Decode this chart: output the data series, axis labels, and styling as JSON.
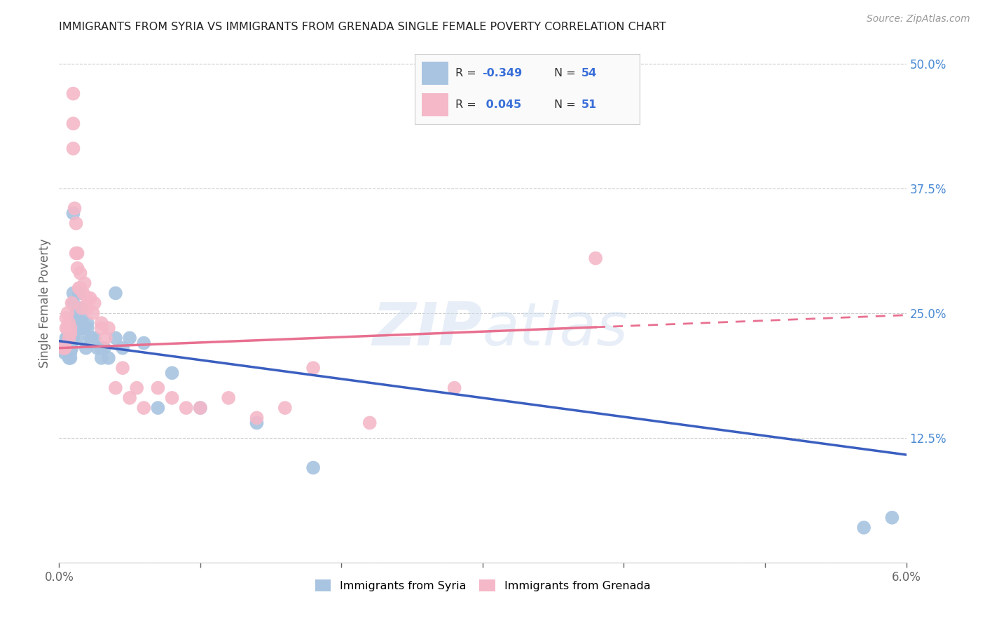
{
  "title": "IMMIGRANTS FROM SYRIA VS IMMIGRANTS FROM GRENADA SINGLE FEMALE POVERTY CORRELATION CHART",
  "source": "Source: ZipAtlas.com",
  "ylabel": "Single Female Poverty",
  "legend_labels": [
    "Immigrants from Syria",
    "Immigrants from Grenada"
  ],
  "legend_R": [
    "-0.349",
    "0.045"
  ],
  "legend_N": [
    "54",
    "51"
  ],
  "xlim": [
    0.0,
    0.06
  ],
  "ylim": [
    0.0,
    0.52
  ],
  "syria_color": "#a8c4e0",
  "grenada_color": "#f4b8c8",
  "syria_line_color": "#3b5fc0",
  "grenada_line_color": "#e87090",
  "background_color": "#ffffff",
  "grid_color": "#cccccc",
  "title_color": "#222222",
  "axis_label_color": "#666666",
  "right_tick_color": "#4a8ad4",
  "legend_R_color": "#3a6fd8",
  "watermark_color": "#d0dff0",
  "syria_x": [
    0.0003,
    0.0004,
    0.0005,
    0.0005,
    0.0006,
    0.0006,
    0.0007,
    0.0007,
    0.0007,
    0.0008,
    0.0008,
    0.0008,
    0.0009,
    0.0009,
    0.001,
    0.001,
    0.001,
    0.001,
    0.0012,
    0.0012,
    0.0013,
    0.0013,
    0.0013,
    0.0014,
    0.0014,
    0.0015,
    0.0015,
    0.0016,
    0.0016,
    0.0017,
    0.0018,
    0.0019,
    0.002,
    0.002,
    0.0022,
    0.0023,
    0.0025,
    0.0027,
    0.003,
    0.003,
    0.0032,
    0.0035,
    0.004,
    0.004,
    0.0045,
    0.005,
    0.006,
    0.007,
    0.008,
    0.01,
    0.014,
    0.018,
    0.057,
    0.059
  ],
  "syria_y": [
    0.215,
    0.21,
    0.225,
    0.22,
    0.215,
    0.225,
    0.225,
    0.215,
    0.205,
    0.215,
    0.205,
    0.21,
    0.225,
    0.215,
    0.35,
    0.27,
    0.26,
    0.225,
    0.255,
    0.245,
    0.245,
    0.235,
    0.225,
    0.235,
    0.27,
    0.24,
    0.235,
    0.255,
    0.245,
    0.235,
    0.235,
    0.215,
    0.24,
    0.235,
    0.225,
    0.225,
    0.225,
    0.215,
    0.215,
    0.205,
    0.215,
    0.205,
    0.225,
    0.27,
    0.215,
    0.225,
    0.22,
    0.155,
    0.19,
    0.155,
    0.14,
    0.095,
    0.035,
    0.045
  ],
  "grenada_x": [
    0.0003,
    0.0004,
    0.0004,
    0.0005,
    0.0005,
    0.0006,
    0.0006,
    0.0007,
    0.0007,
    0.0008,
    0.0008,
    0.0009,
    0.001,
    0.001,
    0.001,
    0.0011,
    0.0012,
    0.0012,
    0.0013,
    0.0013,
    0.0014,
    0.0015,
    0.0015,
    0.0016,
    0.0017,
    0.0018,
    0.002,
    0.002,
    0.0022,
    0.0024,
    0.0025,
    0.003,
    0.003,
    0.0033,
    0.0035,
    0.004,
    0.0045,
    0.005,
    0.0055,
    0.006,
    0.007,
    0.008,
    0.009,
    0.01,
    0.012,
    0.014,
    0.016,
    0.018,
    0.022,
    0.028,
    0.038
  ],
  "grenada_y": [
    0.215,
    0.215,
    0.215,
    0.245,
    0.235,
    0.25,
    0.235,
    0.24,
    0.225,
    0.235,
    0.23,
    0.26,
    0.47,
    0.44,
    0.415,
    0.355,
    0.34,
    0.31,
    0.31,
    0.295,
    0.275,
    0.29,
    0.275,
    0.255,
    0.27,
    0.28,
    0.265,
    0.255,
    0.265,
    0.25,
    0.26,
    0.24,
    0.235,
    0.225,
    0.235,
    0.175,
    0.195,
    0.165,
    0.175,
    0.155,
    0.175,
    0.165,
    0.155,
    0.155,
    0.165,
    0.145,
    0.155,
    0.195,
    0.14,
    0.175,
    0.305
  ]
}
